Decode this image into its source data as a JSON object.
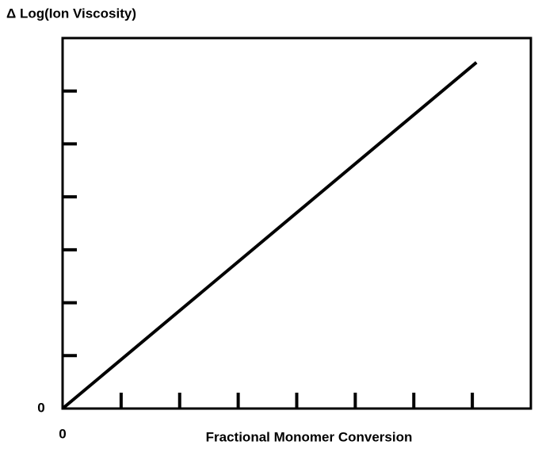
{
  "chart_data": {
    "type": "line",
    "title": "Δ Log(Ion Viscosity)",
    "x_label": "Fractional Monomer Conversion",
    "x": [
      0,
      7.07
    ],
    "series": [
      {
        "color": "#000000",
        "values": [
          0,
          6.54
        ]
      }
    ],
    "xlim": [
      0,
      8
    ],
    "ylim": [
      0,
      7
    ],
    "xticks": [
      0
    ],
    "yticks": [
      0
    ],
    "xtick_marks": [
      1,
      2,
      3,
      4,
      5,
      6,
      7
    ],
    "ytick_marks": [
      1,
      2,
      3,
      4,
      5,
      6
    ]
  }
}
